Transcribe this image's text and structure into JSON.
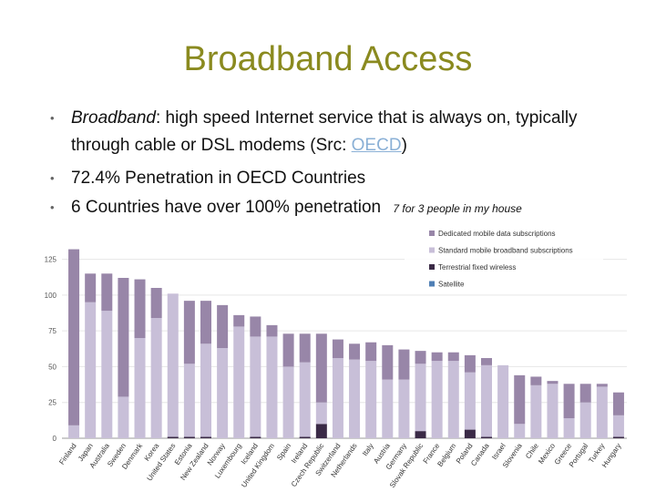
{
  "slide": {
    "title": "Broadband Access",
    "bullet1_term": "Broadband",
    "bullet1_rest": ": high speed Internet service that is always on, typically through cable or DSL modems (Src: ",
    "bullet1_link": "OECD",
    "bullet1_end": ")",
    "bullet2": "72.4% Penetration in OECD Countries",
    "bullet3": "6 Countries have over 100% penetration",
    "note": "7 for 3 people in my house",
    "bullet_symbol": "•"
  },
  "colors": {
    "title": "#8a8a1f",
    "link": "#8ab0d6",
    "dedicated": "#9886a8",
    "standard": "#c8bfd8",
    "fixed": "#3a2a46",
    "satellite": "#4f7fb5"
  },
  "chart_data": {
    "type": "bar",
    "stacked": true,
    "ylim": [
      0,
      140
    ],
    "yticks": [
      0,
      25,
      50,
      75,
      100,
      125
    ],
    "grid": true,
    "legend_position": "top-right",
    "categories": [
      "Finland",
      "Japan",
      "Australia",
      "Sweden",
      "Denmark",
      "Korea",
      "United States",
      "Estonia",
      "New Zealand",
      "Norway",
      "Luxembourg",
      "Iceland",
      "United Kingdom",
      "Spain",
      "Ireland",
      "Czech Republic",
      "Switzerland",
      "Netherlands",
      "Italy",
      "Austria",
      "Germany",
      "Slovak Republic",
      "France",
      "Belgium",
      "Poland",
      "Canada",
      "Israel",
      "Slovenia",
      "Chile",
      "Mexico",
      "Greece",
      "Portugal",
      "Turkey",
      "Hungary"
    ],
    "series": [
      {
        "name": "Satellite",
        "values": [
          0,
          0,
          0,
          0,
          0,
          0,
          0,
          0,
          0,
          0,
          0,
          0,
          0,
          0,
          0,
          0,
          0,
          0,
          0,
          0,
          0,
          0,
          0,
          0,
          0,
          0,
          0,
          0,
          0,
          0,
          0,
          0,
          0,
          0
        ]
      },
      {
        "name": "Terrestrial fixed wireless",
        "values": [
          0,
          0,
          0,
          0,
          0,
          0,
          1,
          1,
          1,
          0,
          0,
          1,
          0,
          0,
          1,
          10,
          0,
          0,
          0,
          0,
          0,
          5,
          0,
          0,
          6,
          1,
          0,
          0,
          0,
          0,
          0,
          0,
          0,
          1
        ]
      },
      {
        "name": "Standard mobile broadband subscriptions",
        "values": [
          9,
          95,
          89,
          29,
          70,
          84,
          100,
          51,
          65,
          63,
          78,
          70,
          71,
          50,
          52,
          15,
          56,
          55,
          54,
          41,
          41,
          47,
          54,
          54,
          40,
          50,
          51,
          10,
          37,
          38,
          14,
          25,
          36,
          15
        ]
      },
      {
        "name": "Dedicated mobile data subscriptions",
        "values": [
          123,
          20,
          26,
          83,
          41,
          21,
          0,
          44,
          30,
          30,
          8,
          14,
          8,
          23,
          20,
          48,
          13,
          11,
          13,
          24,
          21,
          9,
          6,
          6,
          12,
          5,
          0,
          34,
          6,
          2,
          24,
          13,
          2,
          16
        ]
      }
    ]
  }
}
